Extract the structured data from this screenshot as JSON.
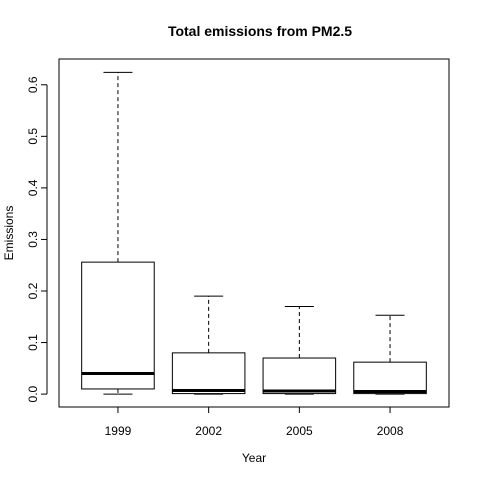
{
  "chart_data": {
    "type": "box",
    "title": "Total emissions from PM2.5",
    "xlabel": "Year",
    "ylabel": "Emissions",
    "categories": [
      "1999",
      "2002",
      "2005",
      "2008"
    ],
    "yticks": [
      0.0,
      0.1,
      0.2,
      0.3,
      0.4,
      0.5,
      0.6
    ],
    "ytick_labels": [
      "0.0",
      "0.1",
      "0.2",
      "0.3",
      "0.4",
      "0.5",
      "0.6"
    ],
    "ylim": [
      -0.025,
      0.65
    ],
    "grid": false,
    "legend": "none",
    "boxes": [
      {
        "category": "1999",
        "whisker_low": 0.0,
        "q1": 0.01,
        "median": 0.04,
        "q3": 0.256,
        "whisker_high": 0.624
      },
      {
        "category": "2002",
        "whisker_low": 0.0,
        "q1": 0.001,
        "median": 0.007,
        "q3": 0.08,
        "whisker_high": 0.19
      },
      {
        "category": "2005",
        "whisker_low": 0.0,
        "q1": 0.001,
        "median": 0.006,
        "q3": 0.07,
        "whisker_high": 0.17
      },
      {
        "category": "2008",
        "whisker_low": 0.0,
        "q1": 0.001,
        "median": 0.005,
        "q3": 0.062,
        "whisker_high": 0.153
      }
    ]
  }
}
